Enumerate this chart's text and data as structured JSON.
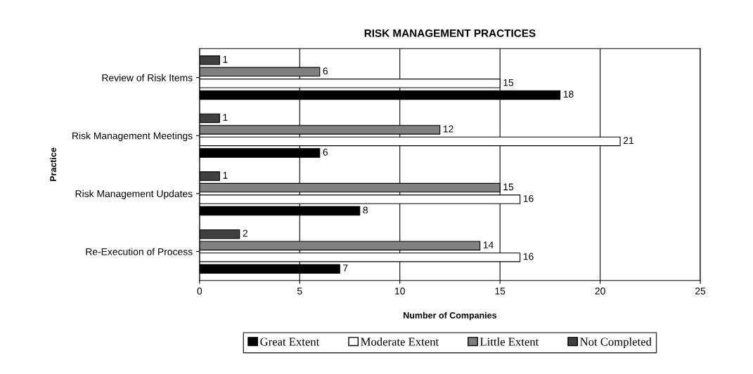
{
  "chart_data": {
    "type": "bar",
    "orientation": "horizontal",
    "title": "RISK MANAGEMENT PRACTICES",
    "xlabel": "Number of Companies",
    "ylabel": "Practice",
    "categories": [
      "Review of Risk Items",
      "Risk Management Meetings",
      "Risk Management Updates",
      "Re-Execution of Process"
    ],
    "series": [
      {
        "name": "Great Extent",
        "color": "#000000",
        "values": [
          18,
          6,
          8,
          7
        ]
      },
      {
        "name": "Moderate Extent",
        "color": "#ffffff",
        "values": [
          15,
          21,
          16,
          16
        ]
      },
      {
        "name": "Little Extent",
        "color": "#808080",
        "values": [
          6,
          12,
          15,
          14
        ]
      },
      {
        "name": "Not Completed",
        "color": "#404040",
        "values": [
          1,
          1,
          1,
          2
        ]
      }
    ],
    "xlim": [
      0,
      25
    ],
    "xticks": [
      0,
      5,
      10,
      15,
      20,
      25
    ],
    "grid": "x",
    "legend": "bottom",
    "data_labels": true
  }
}
